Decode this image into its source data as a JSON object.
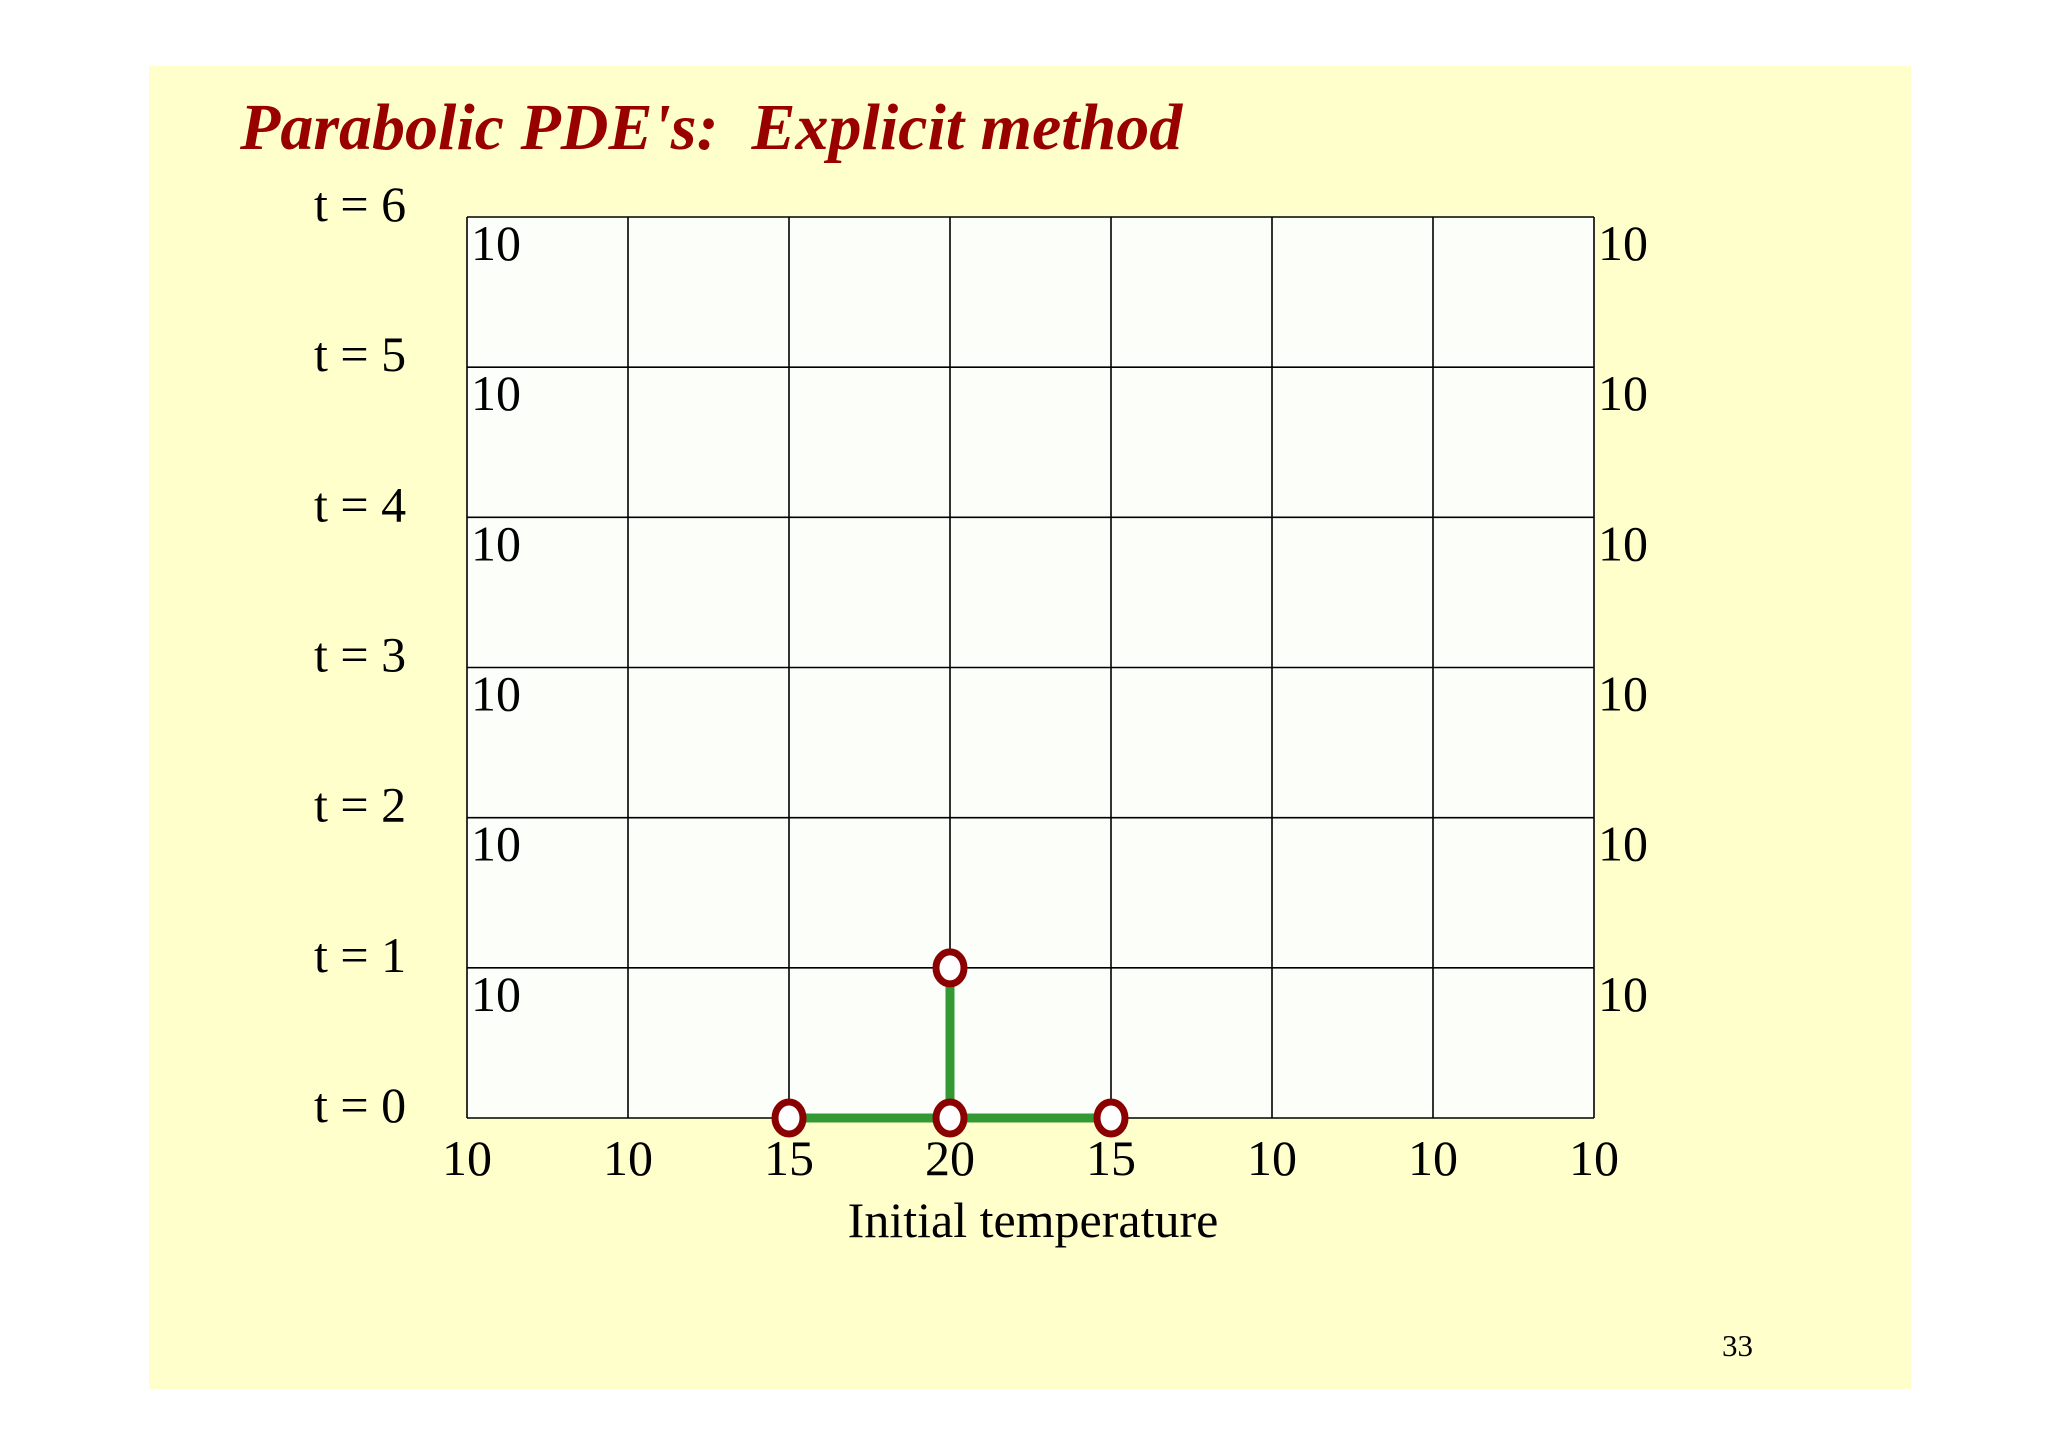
{
  "title": "Parabolic PDE's:  Explicit method",
  "page_number": "33",
  "x_axis_label": "Initial temperature",
  "time_labels": [
    "t = 0",
    "t = 1",
    "t = 2",
    "t = 3",
    "t = 4",
    "t = 5",
    "t = 6"
  ],
  "initial_temperatures": [
    "10",
    "10",
    "15",
    "20",
    "15",
    "10",
    "10",
    "10"
  ],
  "left_boundary_values": [
    "10",
    "10",
    "10",
    "10",
    "10",
    "10"
  ],
  "right_boundary_values": [
    "10",
    "10",
    "10",
    "10",
    "10",
    "10"
  ],
  "colors": {
    "slide_background": "#ffffcc",
    "title": "#990000",
    "grid_fill": "#fcfefa",
    "grid_line": "#000000",
    "stencil_line": "#339933",
    "node_stroke": "#8b0000",
    "node_fill": "#ffffff"
  },
  "stencil": {
    "description_nodes": [
      {
        "i": 2,
        "t": 0
      },
      {
        "i": 3,
        "t": 0
      },
      {
        "i": 4,
        "t": 0
      },
      {
        "i": 3,
        "t": 1
      }
    ]
  }
}
